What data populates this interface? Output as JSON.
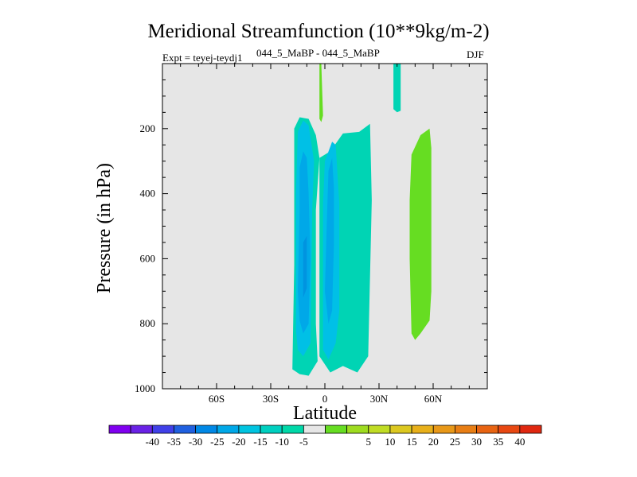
{
  "chart_data": {
    "type": "filled-contour",
    "title": "Meridional Streamfunction (10**9kg/m-2)",
    "subtitle": "044_5_MaBP - 044_5_MaBP",
    "expt_label": "Expt = teyej-teydj1",
    "season": "DJF",
    "xlabel": "Latitude",
    "ylabel": "Pressure (in hPa)",
    "xlim": [
      -90,
      90
    ],
    "ylim": [
      1000,
      0
    ],
    "x_ticks": [
      {
        "value": -60,
        "label": "60S"
      },
      {
        "value": -30,
        "label": "30S"
      },
      {
        "value": 0,
        "label": "0"
      },
      {
        "value": 30,
        "label": "30N"
      },
      {
        "value": 60,
        "label": "60N"
      }
    ],
    "y_ticks": [
      {
        "value": 200,
        "label": "200"
      },
      {
        "value": 400,
        "label": "400"
      },
      {
        "value": 600,
        "label": "600"
      },
      {
        "value": 800,
        "label": "800"
      },
      {
        "value": 1000,
        "label": "1000"
      }
    ],
    "background_color": "#e6e6e6",
    "regions": [
      {
        "name": "sh-cell-outer",
        "level": -10,
        "color": "#00d4b4",
        "points": [
          [
            -18,
            940
          ],
          [
            -17,
            620
          ],
          [
            -17,
            200
          ],
          [
            -14,
            165
          ],
          [
            -9,
            170
          ],
          [
            -5,
            220
          ],
          [
            -3,
            290
          ],
          [
            -5,
            450
          ],
          [
            -5,
            800
          ],
          [
            -4,
            915
          ],
          [
            -9,
            960
          ],
          [
            -14,
            955
          ]
        ]
      },
      {
        "name": "nh-cell-outer",
        "level": -10,
        "color": "#00d4b4",
        "points": [
          [
            -3,
            900
          ],
          [
            -3,
            290
          ],
          [
            3,
            270
          ],
          [
            10,
            215
          ],
          [
            19,
            210
          ],
          [
            25,
            185
          ],
          [
            26,
            420
          ],
          [
            24,
            900
          ],
          [
            18,
            950
          ],
          [
            10,
            930
          ],
          [
            3,
            950
          ]
        ]
      },
      {
        "name": "sh-cell-15",
        "level": -15,
        "color": "#00c0e6",
        "points": [
          [
            -16,
            820
          ],
          [
            -16,
            400
          ],
          [
            -15,
            210
          ],
          [
            -12,
            175
          ],
          [
            -9,
            190
          ],
          [
            -6,
            300
          ],
          [
            -7,
            450
          ],
          [
            -8,
            860
          ],
          [
            -12,
            900
          ],
          [
            -15,
            880
          ]
        ]
      },
      {
        "name": "nh-cell-15",
        "level": -15,
        "color": "#00c0e6",
        "points": [
          [
            -1,
            880
          ],
          [
            -1,
            430
          ],
          [
            0,
            300
          ],
          [
            4,
            240
          ],
          [
            6,
            250
          ],
          [
            8,
            430
          ],
          [
            8,
            760
          ],
          [
            6,
            860
          ],
          [
            2,
            910
          ]
        ]
      },
      {
        "name": "sh-cell-20",
        "level": -20,
        "color": "#00a8e8",
        "points": [
          [
            -15,
            700
          ],
          [
            -14,
            450
          ],
          [
            -14,
            320
          ],
          [
            -12,
            270
          ],
          [
            -10,
            290
          ],
          [
            -9,
            400
          ],
          [
            -8,
            600
          ],
          [
            -9,
            800
          ],
          [
            -12,
            830
          ],
          [
            -14,
            790
          ]
        ]
      },
      {
        "name": "nh-cell-20",
        "level": -20,
        "color": "#00a8e8",
        "points": [
          [
            0,
            700
          ],
          [
            1,
            500
          ],
          [
            2,
            330
          ],
          [
            4,
            290
          ],
          [
            5,
            380
          ],
          [
            5,
            560
          ],
          [
            4,
            760
          ],
          [
            2,
            800
          ]
        ]
      },
      {
        "name": "sh-cell-25",
        "level": -25,
        "color": "#0094e0",
        "points": [
          [
            -12,
            720
          ],
          [
            -12,
            550
          ],
          [
            -10,
            530
          ],
          [
            -10,
            690
          ]
        ]
      },
      {
        "name": "upper-plume-sh",
        "level": 10,
        "color": "#66dd22",
        "points": [
          [
            -3,
            170
          ],
          [
            -3,
            0
          ],
          [
            -2,
            0
          ],
          [
            -1,
            160
          ],
          [
            -2,
            180
          ]
        ]
      },
      {
        "name": "upper-plume-nh",
        "level": -10,
        "color": "#00d4b4",
        "points": [
          [
            38,
            140
          ],
          [
            38,
            0
          ],
          [
            42,
            0
          ],
          [
            42,
            145
          ],
          [
            40,
            150
          ]
        ]
      },
      {
        "name": "nh-positive-cell",
        "level": 10,
        "color": "#66dd22",
        "points": [
          [
            48,
            830
          ],
          [
            47,
            600
          ],
          [
            47,
            420
          ],
          [
            48,
            280
          ],
          [
            53,
            220
          ],
          [
            58,
            200
          ],
          [
            59,
            260
          ],
          [
            59,
            700
          ],
          [
            58,
            790
          ],
          [
            53,
            830
          ],
          [
            50,
            850
          ]
        ]
      }
    ]
  },
  "colorbar": {
    "colors": [
      "#8000f0",
      "#6a22e6",
      "#4040e8",
      "#2060e0",
      "#0088e6",
      "#00a8e8",
      "#00c4e0",
      "#00d0c0",
      "#00d8a8",
      "#e6e6e6",
      "#66dd22",
      "#9edc20",
      "#c0dc24",
      "#dcc820",
      "#e8b01a",
      "#e89818",
      "#e87e14",
      "#e86412",
      "#e84812",
      "#e02810"
    ],
    "labels": [
      "-40",
      "-35",
      "-30",
      "-25",
      "-20",
      "-15",
      "-10",
      "-5",
      "5",
      "10",
      "15",
      "20",
      "25",
      "30",
      "35",
      "40"
    ]
  }
}
